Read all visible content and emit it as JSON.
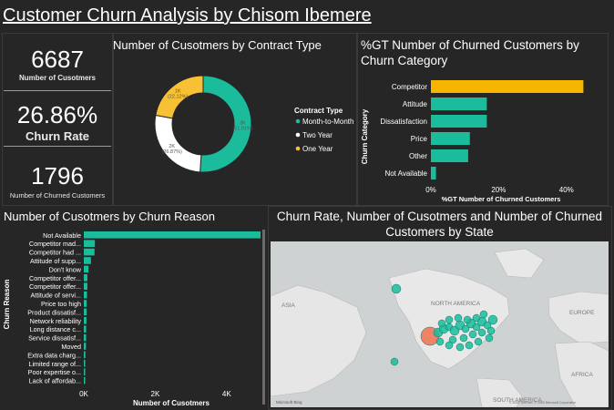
{
  "title": "Customer Churn Analysis by Chisom Ibemere",
  "kpis": [
    {
      "value": "6687",
      "label": "Number of Cusotmers"
    },
    {
      "value": "26.86%",
      "label": "Churn Rate"
    },
    {
      "value": "1796",
      "label": "Number of Churned Customers"
    }
  ],
  "colors": {
    "teal": "#1abc9c",
    "white": "#ffffff",
    "yellow": "#f7c035",
    "competitor": "#f7b500",
    "bg": "#262626"
  },
  "chart_data": [
    {
      "type": "pie",
      "title": "Number of Cusotmers by Contract Type",
      "legend_title": "Contract Type",
      "legend_position": "right",
      "slices": [
        {
          "name": "Month-to-Month",
          "value": 3,
          "label": "3K",
          "pct": "(51.01%)",
          "color": "#1abc9c"
        },
        {
          "name": "Two Year",
          "value": 2,
          "label": "2K",
          "pct": "(26.87%)",
          "color": "#ffffff"
        },
        {
          "name": "One Year",
          "value": 1,
          "label": "1K",
          "pct": "(22.12%)",
          "color": "#f7c035"
        }
      ],
      "shares": [
        51.01,
        26.87,
        22.12
      ]
    },
    {
      "type": "bar",
      "orientation": "horizontal",
      "title": "%GT Number of Churned Customers by Churn Category",
      "xlabel": "%GT Number of Churned Customers",
      "ylabel": "Churn Category",
      "categories": [
        "Competitor",
        "Attitude",
        "Dissatisfaction",
        "Price",
        "Other",
        "Not Available"
      ],
      "values": [
        45,
        16.5,
        16.5,
        11.5,
        11,
        1.5
      ],
      "xlim": [
        0,
        50
      ],
      "xticks": [
        "0%",
        "20%",
        "40%"
      ],
      "xtick_values": [
        0,
        20,
        40
      ]
    },
    {
      "type": "bar",
      "orientation": "horizontal",
      "title": "Number of Cusotmers by Churn Reason",
      "xlabel": "Number of Cusotmers",
      "ylabel": "Churn Reason",
      "categories": [
        "Not Available",
        "Competitor mad...",
        "Competitor had ...",
        "Attitude of supp...",
        "Don't know",
        "Competitor offer...",
        "Competitor offer...",
        "Attitude of servi...",
        "Price too high",
        "Product dissatisf...",
        "Network reliability",
        "Long distance c...",
        "Service dissatisf...",
        "Moved",
        "Extra data charg...",
        "Limited range of...",
        "Poor expertise o...",
        "Lack of affordab..."
      ],
      "values": [
        4950,
        310,
        300,
        200,
        130,
        100,
        100,
        90,
        80,
        80,
        75,
        65,
        65,
        60,
        45,
        40,
        30,
        30
      ],
      "xlim": [
        0,
        5000
      ],
      "xticks": [
        "0K",
        "2K",
        "4K"
      ],
      "xtick_values": [
        0,
        2000,
        4000
      ]
    },
    {
      "type": "scatter",
      "title": "Churn Rate, Number of Cusotmers and Number of Churned Customers by State",
      "map_labels": [
        "ASIA",
        "NORTH AMERICA",
        "EUROPE",
        "AFRICA",
        "SOUTH AMERICA"
      ],
      "attribution": "Microsoft Bing",
      "copyright": "© 2023 TomTom, © 2023 Microsoft Corporation"
    }
  ]
}
